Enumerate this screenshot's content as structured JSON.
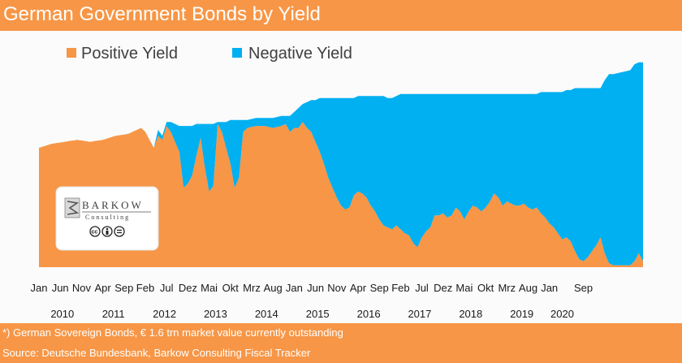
{
  "title": "German Government Bonds by Yield",
  "footnote": "*) German Sovereign Bonds, € 1.6 trn market value currently outstanding",
  "source": "Source: Deutsche Bundesbank, Barkow Consulting Fiscal Tracker",
  "logo": {
    "name": "BARKOW",
    "sub": "Consulting"
  },
  "colors": {
    "positive": "#f79646",
    "negative": "#00b0f0",
    "banner": "#f79646"
  },
  "chart_data": {
    "type": "area",
    "stacked": true,
    "title": "German Government Bonds by Yield",
    "x_start": "Jan 2010",
    "x_end": "Dec 2020",
    "x_unit": "month index (0 = Jan 2010)",
    "y_unit": "share of outstanding bonds (%)",
    "ylim": [
      0,
      100
    ],
    "legend_position": "top",
    "series": [
      {
        "name": "Positive Yield",
        "points": [
          [
            0,
            60
          ],
          [
            3,
            62
          ],
          [
            6,
            63
          ],
          [
            9,
            64
          ],
          [
            12,
            63
          ],
          [
            15,
            64
          ],
          [
            18,
            66
          ],
          [
            21,
            67
          ],
          [
            24,
            70
          ],
          [
            25,
            68
          ],
          [
            27,
            60
          ],
          [
            28,
            66
          ],
          [
            29,
            64
          ],
          [
            30,
            71
          ],
          [
            31,
            68
          ],
          [
            32,
            63
          ],
          [
            33,
            58
          ],
          [
            34,
            40
          ],
          [
            35,
            42
          ],
          [
            36,
            46
          ],
          [
            37,
            56
          ],
          [
            38,
            65
          ],
          [
            39,
            50
          ],
          [
            40,
            38
          ],
          [
            41,
            41
          ],
          [
            42,
            72
          ],
          [
            43,
            68
          ],
          [
            44,
            60
          ],
          [
            45,
            52
          ],
          [
            46,
            40
          ],
          [
            47,
            45
          ],
          [
            48,
            68
          ],
          [
            49,
            70
          ],
          [
            51,
            71
          ],
          [
            53,
            71
          ],
          [
            55,
            70
          ],
          [
            57,
            71
          ],
          [
            58,
            72
          ],
          [
            59,
            68
          ],
          [
            60,
            70
          ],
          [
            61,
            70
          ],
          [
            62,
            73
          ],
          [
            63,
            70
          ],
          [
            64,
            68
          ],
          [
            65,
            63
          ],
          [
            66,
            58
          ],
          [
            67,
            52
          ],
          [
            68,
            45
          ],
          [
            69,
            40
          ],
          [
            70,
            35
          ],
          [
            71,
            31
          ],
          [
            72,
            29
          ],
          [
            73,
            30
          ],
          [
            74,
            36
          ],
          [
            75,
            38
          ],
          [
            76,
            37
          ],
          [
            77,
            35
          ],
          [
            78,
            31
          ],
          [
            79,
            28
          ],
          [
            80,
            24
          ],
          [
            81,
            21
          ],
          [
            82,
            20
          ],
          [
            83,
            19
          ],
          [
            84,
            21
          ],
          [
            85,
            19
          ],
          [
            86,
            17
          ],
          [
            87,
            16
          ],
          [
            88,
            12
          ],
          [
            89,
            10
          ],
          [
            90,
            15
          ],
          [
            91,
            18
          ],
          [
            92,
            20
          ],
          [
            93,
            26
          ],
          [
            94,
            26
          ],
          [
            95,
            27
          ],
          [
            96,
            25
          ],
          [
            97,
            26
          ],
          [
            98,
            30
          ],
          [
            99,
            28
          ],
          [
            100,
            24
          ],
          [
            101,
            28
          ],
          [
            102,
            31
          ],
          [
            103,
            30
          ],
          [
            104,
            28
          ],
          [
            105,
            30
          ],
          [
            106,
            33
          ],
          [
            107,
            37
          ],
          [
            108,
            35
          ],
          [
            109,
            31
          ],
          [
            110,
            33
          ],
          [
            111,
            32
          ],
          [
            112,
            31
          ],
          [
            113,
            31
          ],
          [
            114,
            32
          ],
          [
            115,
            30
          ],
          [
            116,
            29
          ],
          [
            117,
            30
          ],
          [
            118,
            27
          ],
          [
            119,
            25
          ],
          [
            120,
            22
          ],
          [
            121,
            20
          ],
          [
            122,
            17
          ],
          [
            123,
            14
          ],
          [
            124,
            15
          ],
          [
            125,
            13
          ],
          [
            126,
            8
          ],
          [
            127,
            4
          ],
          [
            128,
            3
          ],
          [
            129,
            5
          ],
          [
            130,
            8
          ],
          [
            131,
            11
          ],
          [
            132,
            15
          ],
          [
            133,
            7
          ],
          [
            134,
            2
          ],
          [
            135,
            1
          ],
          [
            137,
            1
          ],
          [
            139,
            1
          ],
          [
            140,
            3
          ],
          [
            141,
            7
          ],
          [
            142,
            3
          ]
        ]
      },
      {
        "name": "Negative Yield",
        "points": [
          [
            0,
            0
          ],
          [
            27,
            0
          ],
          [
            28,
            3
          ],
          [
            29,
            2
          ],
          [
            30,
            2
          ],
          [
            31,
            5
          ],
          [
            32,
            9
          ],
          [
            33,
            13
          ],
          [
            34,
            31
          ],
          [
            35,
            29
          ],
          [
            36,
            25
          ],
          [
            37,
            16
          ],
          [
            38,
            7
          ],
          [
            39,
            22
          ],
          [
            40,
            34
          ],
          [
            41,
            31
          ],
          [
            42,
            1
          ],
          [
            43,
            5
          ],
          [
            44,
            13
          ],
          [
            45,
            22
          ],
          [
            46,
            34
          ],
          [
            47,
            29
          ],
          [
            48,
            6
          ],
          [
            49,
            4
          ],
          [
            51,
            4
          ],
          [
            53,
            4
          ],
          [
            55,
            5
          ],
          [
            57,
            5
          ],
          [
            58,
            4
          ],
          [
            59,
            8
          ],
          [
            60,
            8
          ],
          [
            61,
            10
          ],
          [
            62,
            9
          ],
          [
            63,
            13
          ],
          [
            64,
            16
          ],
          [
            65,
            21
          ],
          [
            66,
            27
          ],
          [
            67,
            33
          ],
          [
            68,
            40
          ],
          [
            69,
            45
          ],
          [
            70,
            50
          ],
          [
            71,
            54
          ],
          [
            72,
            56
          ],
          [
            73,
            55
          ],
          [
            74,
            49
          ],
          [
            75,
            48
          ],
          [
            76,
            49
          ],
          [
            77,
            51
          ],
          [
            78,
            55
          ],
          [
            79,
            58
          ],
          [
            80,
            62
          ],
          [
            81,
            65
          ],
          [
            82,
            65
          ],
          [
            83,
            66
          ],
          [
            84,
            65
          ],
          [
            85,
            68
          ],
          [
            86,
            70
          ],
          [
            87,
            71
          ],
          [
            88,
            75
          ],
          [
            89,
            77
          ],
          [
            90,
            72
          ],
          [
            91,
            69
          ],
          [
            92,
            67
          ],
          [
            93,
            61
          ],
          [
            94,
            61
          ],
          [
            95,
            60
          ],
          [
            96,
            62
          ],
          [
            97,
            61
          ],
          [
            98,
            57
          ],
          [
            99,
            59
          ],
          [
            100,
            63
          ],
          [
            101,
            59
          ],
          [
            102,
            56
          ],
          [
            103,
            57
          ],
          [
            104,
            59
          ],
          [
            105,
            57
          ],
          [
            106,
            54
          ],
          [
            107,
            50
          ],
          [
            108,
            52
          ],
          [
            109,
            56
          ],
          [
            110,
            54
          ],
          [
            111,
            55
          ],
          [
            112,
            56
          ],
          [
            113,
            56
          ],
          [
            114,
            55
          ],
          [
            115,
            57
          ],
          [
            116,
            58
          ],
          [
            117,
            57
          ],
          [
            118,
            61
          ],
          [
            119,
            63
          ],
          [
            120,
            66
          ],
          [
            121,
            68
          ],
          [
            122,
            71
          ],
          [
            123,
            74
          ],
          [
            124,
            74
          ],
          [
            125,
            76
          ],
          [
            126,
            82
          ],
          [
            127,
            86
          ],
          [
            128,
            87
          ],
          [
            129,
            85
          ],
          [
            130,
            82
          ],
          [
            131,
            79
          ],
          [
            132,
            75
          ],
          [
            133,
            87
          ],
          [
            134,
            95
          ],
          [
            135,
            96
          ],
          [
            137,
            97
          ],
          [
            139,
            98
          ],
          [
            140,
            99
          ],
          [
            141,
            96
          ],
          [
            142,
            100
          ]
        ]
      }
    ],
    "month_labels": [
      "Jan",
      "Jun",
      "Nov",
      "Apr",
      "Sep",
      "Feb",
      "Jul",
      "Dez",
      "Mai",
      "Okt",
      "Mrz",
      "Aug",
      "Jan",
      "Jun",
      "Nov",
      "Apr",
      "Sep",
      "Feb",
      "Jul",
      "Dez",
      "Mai",
      "Okt",
      "Mrz",
      "Aug",
      "Jan",
      "Sep"
    ],
    "month_label_index": [
      0,
      5,
      10,
      15,
      20,
      25,
      30,
      35,
      40,
      45,
      50,
      55,
      60,
      65,
      70,
      75,
      80,
      85,
      90,
      95,
      100,
      105,
      110,
      115,
      120,
      128
    ],
    "year_labels": [
      "2010",
      "2011",
      "2012",
      "2013",
      "2014",
      "2015",
      "2016",
      "2017",
      "2018",
      "2019",
      "2020"
    ],
    "year_label_index": [
      5.5,
      17.5,
      29.5,
      41.5,
      53.5,
      65.5,
      77.5,
      89.5,
      101.5,
      113.5,
      123
    ]
  }
}
